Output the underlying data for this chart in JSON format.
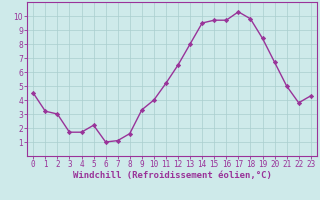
{
  "x": [
    0,
    1,
    2,
    3,
    4,
    5,
    6,
    7,
    8,
    9,
    10,
    11,
    12,
    13,
    14,
    15,
    16,
    17,
    18,
    19,
    20,
    21,
    22,
    23
  ],
  "y": [
    4.5,
    3.2,
    3.0,
    1.7,
    1.7,
    2.2,
    1.0,
    1.1,
    1.6,
    3.3,
    4.0,
    5.2,
    6.5,
    8.0,
    9.5,
    9.7,
    9.7,
    10.3,
    9.8,
    8.4,
    6.7,
    5.0,
    3.8,
    4.3
  ],
  "line_color": "#993399",
  "marker": "D",
  "marker_size": 2.2,
  "line_width": 1.0,
  "bg_color": "#ceeaea",
  "grid_color": "#aacece",
  "xlabel": "Windchill (Refroidissement éolien,°C)",
  "xlim": [
    -0.5,
    23.5
  ],
  "ylim": [
    0,
    11
  ],
  "yticks": [
    1,
    2,
    3,
    4,
    5,
    6,
    7,
    8,
    9,
    10
  ],
  "xticks": [
    0,
    1,
    2,
    3,
    4,
    5,
    6,
    7,
    8,
    9,
    10,
    11,
    12,
    13,
    14,
    15,
    16,
    17,
    18,
    19,
    20,
    21,
    22,
    23
  ],
  "tick_color": "#993399",
  "label_fontsize": 6.5,
  "tick_fontsize": 5.5,
  "axis_color": "#993399"
}
